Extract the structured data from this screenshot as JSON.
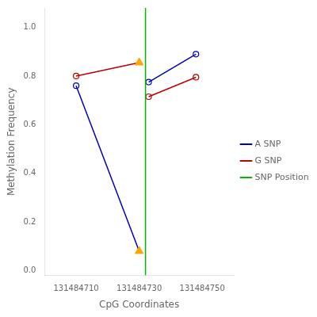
{
  "chart_data": {
    "type": "line",
    "xlabel": "CpG Coordinates",
    "ylabel": "Methylation Frequency",
    "series": [
      {
        "name": "A SNP",
        "color": "#0000BB",
        "marker": "circle",
        "x": [
          131484710,
          131484730,
          null,
          131484733,
          131484748
        ],
        "values": [
          0.76,
          0.08,
          null,
          0.775,
          0.89
        ]
      },
      {
        "name": "G SNP",
        "color": "#BB0000",
        "marker": "circle",
        "x": [
          131484710,
          131484730,
          null,
          131484733,
          131484748
        ],
        "values": [
          0.8,
          0.855,
          null,
          0.715,
          0.795
        ]
      },
      {
        "type": "scatter",
        "color": "#FFA500",
        "marker": "triangle",
        "x": [
          131484730,
          131484730
        ],
        "values": [
          0.08,
          0.855
        ]
      }
    ],
    "vlines": [
      {
        "name": "SNP Position",
        "x": 131484732,
        "color": "#00BB00"
      }
    ],
    "xlim": [
      131484700,
      131484760
    ],
    "ylim": [
      -0.02,
      1.08
    ],
    "xticks": [
      131484710,
      131484730,
      131484750
    ],
    "yticks": [
      {
        "value": 0.0,
        "label": "0.0"
      },
      0.2,
      0.4,
      0.6,
      0.8,
      {
        "value": 1.0,
        "label": "1.0"
      }
    ],
    "legend": "center right",
    "grid": false
  }
}
